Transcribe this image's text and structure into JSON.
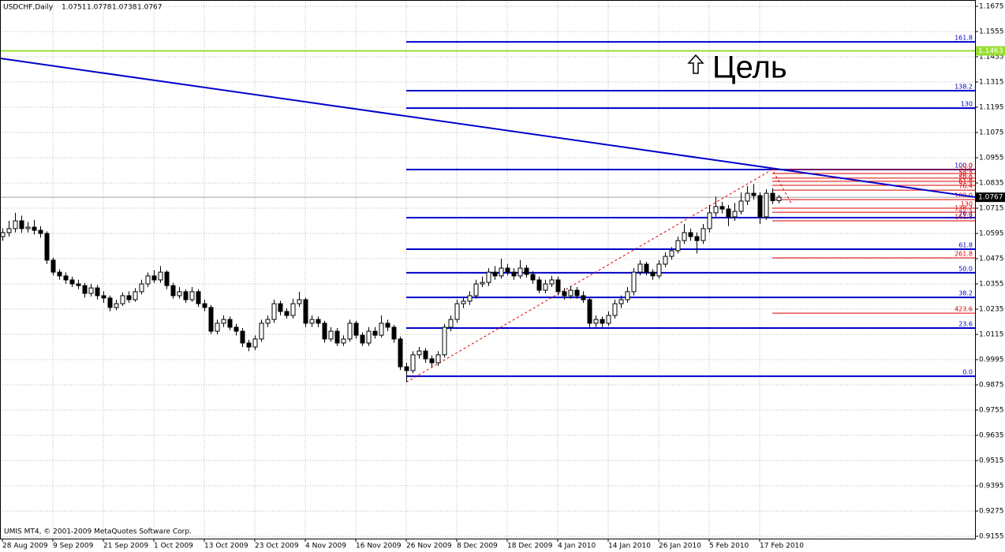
{
  "chart_data": {
    "type": "candlestick",
    "title": "USDCHF,Daily",
    "footer": "UMIS MT4, © 2001-2009 MetaQuotes Software Corp.",
    "annotation": "Цель",
    "ylim": [
      0.9144,
      1.1705
    ],
    "yticks": [
      1.1675,
      1.1555,
      1.1435,
      1.1315,
      1.1195,
      1.1075,
      1.0955,
      1.0835,
      1.0715,
      1.0595,
      1.0475,
      1.0355,
      1.0235,
      1.0115,
      0.9995,
      0.9875,
      0.9755,
      0.9635,
      0.9515,
      0.9395,
      0.9275,
      0.9155
    ],
    "grid": true,
    "bull_color": "#ffffff",
    "bear_color": "#000000",
    "categories": [
      "28 Aug 2009",
      null,
      null,
      null,
      null,
      null,
      null,
      null,
      "9 Sep 2009",
      null,
      null,
      null,
      null,
      null,
      null,
      null,
      "21 Sep 2009",
      null,
      null,
      null,
      null,
      null,
      null,
      null,
      "1 Oct 2009",
      null,
      null,
      null,
      null,
      null,
      null,
      null,
      "13 Oct 2009",
      null,
      null,
      null,
      null,
      null,
      null,
      null,
      "23 Oct 2009",
      null,
      null,
      null,
      null,
      null,
      null,
      null,
      "4 Nov 2009",
      null,
      null,
      null,
      null,
      null,
      null,
      null,
      "16 Nov 2009",
      null,
      null,
      null,
      null,
      null,
      null,
      null,
      "26 Nov 2009",
      null,
      null,
      null,
      null,
      null,
      null,
      null,
      "8 Dec 2009",
      null,
      null,
      null,
      null,
      null,
      null,
      null,
      "18 Dec 2009",
      null,
      null,
      null,
      null,
      null,
      null,
      null,
      "4 Jan 2010",
      null,
      null,
      null,
      null,
      null,
      null,
      null,
      "14 Jan 2010",
      null,
      null,
      null,
      null,
      null,
      null,
      null,
      "26 Jan 2010",
      null,
      null,
      null,
      null,
      null,
      null,
      null,
      "5 Feb 2010",
      null,
      null,
      null,
      null,
      null,
      null,
      null,
      "17 Feb 2010",
      null,
      null,
      null
    ],
    "open": [
      1.058,
      1.0599,
      1.0618,
      1.0655,
      1.0618,
      1.0625,
      1.061,
      1.0595,
      1.0468,
      1.0411,
      1.0393,
      1.0374,
      1.0355,
      1.0347,
      1.031,
      1.0336,
      1.0299,
      1.0288,
      1.0243,
      1.0261,
      1.0299,
      1.028,
      1.0318,
      1.0355,
      1.0393,
      1.0374,
      1.0411,
      1.0347,
      1.0299,
      1.0318,
      1.028,
      1.0318,
      1.0261,
      1.0243,
      1.013,
      1.0168,
      1.0186,
      1.0149,
      1.013,
      1.0074,
      1.0055,
      1.0093,
      1.0168,
      1.0186,
      1.0261,
      1.0224,
      1.0205,
      1.0261,
      1.028,
      1.0168,
      1.0186,
      1.0168,
      1.0093,
      1.013,
      1.0074,
      1.0093,
      1.0168,
      1.0111,
      1.0074,
      1.013,
      1.0111,
      1.0168,
      1.0149,
      1.0093,
      0.9961,
      0.9943,
      1.0018,
      1.0036,
      0.9999,
      0.998,
      1.0018,
      1.0149,
      1.0186,
      1.0261,
      1.0273,
      1.0299,
      1.0355,
      1.0362,
      1.0411,
      1.0393,
      1.043,
      1.0411,
      1.0393,
      1.043,
      1.04,
      1.0374,
      1.0325,
      1.0355,
      1.0374,
      1.0318,
      1.0299,
      1.0325,
      1.0299,
      1.028,
      1.0168,
      1.0186,
      1.0168,
      1.0205,
      1.0261,
      1.028,
      1.0318,
      1.0411,
      1.0449,
      1.0411,
      1.0393,
      1.0449,
      1.0486,
      1.0513,
      1.0561,
      1.0599,
      1.058,
      1.0561,
      1.0618,
      1.0693,
      1.0723,
      1.0711,
      1.0674,
      1.07,
      1.0749,
      1.0786,
      1.0775,
      1.0674,
      1.0786,
      1.0751
    ],
    "high": [
      1.0619,
      1.0655,
      1.0693,
      1.068,
      1.065,
      1.066,
      1.063,
      1.0605,
      1.048,
      1.0425,
      1.041,
      1.039,
      1.0375,
      1.036,
      1.0355,
      1.035,
      1.032,
      1.03,
      1.028,
      1.0315,
      1.032,
      1.0335,
      1.0375,
      1.041,
      1.042,
      1.044,
      1.042,
      1.036,
      1.034,
      1.033,
      1.034,
      1.033,
      1.028,
      1.0255,
      1.0185,
      1.0205,
      1.02,
      1.0165,
      1.0145,
      1.009,
      1.011,
      1.0185,
      1.0205,
      1.028,
      1.0275,
      1.024,
      1.0285,
      1.0318,
      1.029,
      1.0205,
      1.02,
      1.018,
      1.015,
      1.0145,
      1.011,
      1.0185,
      1.018,
      1.0125,
      1.015,
      1.015,
      1.0205,
      1.0185,
      1.016,
      1.0105,
      0.998,
      1.0035,
      1.0055,
      1.005,
      1.0015,
      1.0035,
      1.0165,
      1.0205,
      1.028,
      1.029,
      1.032,
      1.0375,
      1.039,
      1.043,
      1.044,
      1.0475,
      1.045,
      1.043,
      1.0468,
      1.0445,
      1.0415,
      1.039,
      1.0375,
      1.0393,
      1.039,
      1.0335,
      1.0345,
      1.034,
      1.032,
      1.029,
      1.0205,
      1.02,
      1.0225,
      1.028,
      1.03,
      1.034,
      1.043,
      1.0468,
      1.046,
      1.0425,
      1.0468,
      1.0505,
      1.053,
      1.058,
      1.064,
      1.0618,
      1.06,
      1.064,
      1.073,
      1.077,
      1.0745,
      1.073,
      1.074,
      1.079,
      1.082,
      1.083,
      1.079,
      1.0805,
      1.081,
      1.0778
    ],
    "low": [
      1.056,
      1.058,
      1.06,
      1.0598,
      1.06,
      1.059,
      1.0575,
      1.045,
      1.0395,
      1.0375,
      1.0355,
      1.034,
      1.033,
      1.029,
      1.0295,
      1.028,
      1.0265,
      1.0225,
      1.023,
      1.025,
      1.0265,
      1.027,
      1.0305,
      1.034,
      1.036,
      1.036,
      1.033,
      1.0285,
      1.0285,
      1.0265,
      1.027,
      1.0245,
      1.0225,
      1.0115,
      1.0115,
      1.015,
      1.0135,
      1.011,
      1.0055,
      1.0035,
      1.004,
      1.008,
      1.015,
      1.017,
      1.0205,
      1.019,
      1.019,
      1.0245,
      1.015,
      1.015,
      1.015,
      1.0075,
      1.008,
      1.006,
      1.006,
      1.008,
      1.0095,
      1.006,
      1.006,
      1.0095,
      1.01,
      1.013,
      1.0075,
      0.9945,
      0.9888,
      0.993,
      1.0,
      0.998,
      0.996,
      0.9965,
      1.0005,
      1.013,
      1.017,
      1.024,
      1.0255,
      1.0285,
      1.034,
      1.0345,
      1.0375,
      1.038,
      1.0395,
      1.0375,
      1.038,
      1.0385,
      1.0355,
      1.031,
      1.031,
      1.034,
      1.03,
      1.028,
      1.0285,
      1.0285,
      1.0265,
      1.015,
      1.015,
      1.015,
      1.0155,
      1.019,
      1.024,
      1.0265,
      1.03,
      1.0395,
      1.0395,
      1.0375,
      1.038,
      1.0435,
      1.047,
      1.05,
      1.0545,
      1.056,
      1.05,
      1.0545,
      1.06,
      1.0675,
      1.069,
      1.063,
      1.0655,
      1.0685,
      1.073,
      1.0755,
      1.064,
      1.066,
      1.0735,
      1.0738
    ],
    "close": [
      1.0599,
      1.0618,
      1.0655,
      1.0618,
      1.0625,
      1.061,
      1.0595,
      1.0468,
      1.0411,
      1.0393,
      1.0374,
      1.0355,
      1.0347,
      1.031,
      1.0336,
      1.0299,
      1.0288,
      1.0243,
      1.0261,
      1.0299,
      1.028,
      1.0318,
      1.0355,
      1.0393,
      1.0374,
      1.0411,
      1.0347,
      1.0299,
      1.0318,
      1.028,
      1.0318,
      1.0261,
      1.0243,
      1.013,
      1.0168,
      1.0186,
      1.0149,
      1.013,
      1.0074,
      1.0055,
      1.0093,
      1.0168,
      1.0186,
      1.0261,
      1.0224,
      1.0205,
      1.0261,
      1.028,
      1.0168,
      1.0186,
      1.0168,
      1.0093,
      1.013,
      1.0074,
      1.0093,
      1.0168,
      1.0111,
      1.0074,
      1.013,
      1.0111,
      1.0168,
      1.0149,
      1.0093,
      0.9961,
      0.9943,
      1.0018,
      1.0036,
      0.9999,
      0.998,
      1.0018,
      1.0149,
      1.0186,
      1.0261,
      1.0273,
      1.0299,
      1.0355,
      1.0362,
      1.0411,
      1.0393,
      1.043,
      1.0411,
      1.0393,
      1.043,
      1.04,
      1.0374,
      1.0325,
      1.0355,
      1.0374,
      1.0318,
      1.0299,
      1.0325,
      1.0299,
      1.028,
      1.0168,
      1.0186,
      1.0168,
      1.0205,
      1.0261,
      1.028,
      1.0318,
      1.0411,
      1.0449,
      1.0411,
      1.0393,
      1.0449,
      1.0486,
      1.0513,
      1.0561,
      1.0599,
      1.058,
      1.0561,
      1.0618,
      1.0693,
      1.0723,
      1.0711,
      1.0674,
      1.07,
      1.0749,
      1.0786,
      1.0775,
      1.0674,
      1.0786,
      1.0751,
      1.0767
    ],
    "target_line": {
      "value": 1.1463,
      "color": "#99dd33"
    },
    "trendline": {
      "color": "#0000cc",
      "x": [
        0,
        122
      ],
      "values": [
        1.1426,
        1.0905
      ]
    },
    "zigzag": {
      "color": "#dd0000",
      "x": [
        64,
        122,
        125
      ],
      "values": [
        0.9888,
        1.0899,
        1.0739
      ]
    },
    "fib_blue": {
      "color": "#0000cc",
      "start": 64,
      "levels": [
        {
          "label": "0.0",
          "value": 0.9916
        },
        {
          "label": "23.6",
          "value": 1.0145
        },
        {
          "label": "38.2",
          "value": 1.0291
        },
        {
          "label": "50.0",
          "value": 1.0408
        },
        {
          "label": "61.8",
          "value": 1.052
        },
        {
          "label": "76.4",
          "value": 1.067
        },
        {
          "label": "100.0",
          "value": 1.0899
        },
        {
          "label": "130",
          "value": 1.1191
        },
        {
          "label": "138.2",
          "value": 1.1274
        },
        {
          "label": "161.8",
          "value": 1.1506
        }
      ]
    },
    "fib_red": {
      "color": "#dd0000",
      "start": 122,
      "levels": [
        {
          "label": "0.0",
          "value": 1.0899
        },
        {
          "label": "23.6",
          "value": 1.088
        },
        {
          "label": "38.2",
          "value": 1.0858
        },
        {
          "label": "50.0",
          "value": 1.0843
        },
        {
          "label": "61.8",
          "value": 1.0824
        },
        {
          "label": "76.4",
          "value": 1.0801
        },
        {
          "label": "100.0",
          "value": 1.0756
        },
        {
          "label": "130",
          "value": 1.0715
        },
        {
          "label": "138.2",
          "value": 1.0696
        },
        {
          "label": "161.8",
          "value": 1.0655
        },
        {
          "label": "261.8",
          "value": 1.0479
        },
        {
          "label": "423.6",
          "value": 1.0216
        }
      ]
    }
  }
}
